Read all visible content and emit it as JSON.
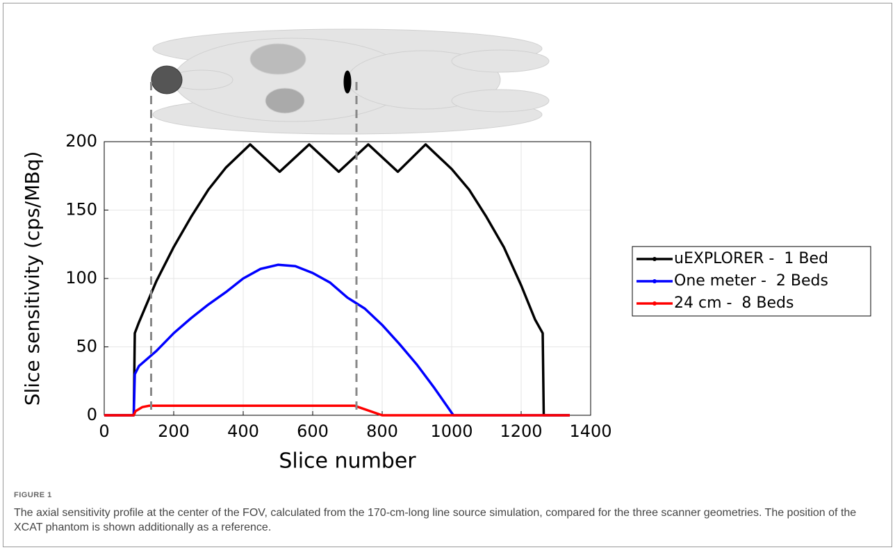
{
  "chart_data": {
    "type": "line",
    "xlabel": "Slice number",
    "ylabel": "Slice sensitivity (cps/MBq)",
    "xlim": [
      0,
      1400
    ],
    "xticks": [
      0,
      200,
      400,
      600,
      800,
      1000,
      1200,
      1400
    ],
    "ylim": [
      0,
      200
    ],
    "yticks": [
      0,
      50,
      100,
      150,
      200
    ],
    "grid": true,
    "legend": "right",
    "vlines": [
      135,
      726
    ],
    "series": [
      {
        "name": "uEXPLORER -  1 Bed",
        "color": "#000000",
        "x": [
          0,
          85,
          88,
          100,
          150,
          200,
          250,
          300,
          350,
          420,
          505,
          590,
          675,
          760,
          845,
          925,
          1000,
          1050,
          1100,
          1150,
          1200,
          1240,
          1262,
          1265,
          1340
        ],
        "values": [
          0,
          0,
          60,
          68,
          98,
          123,
          145,
          165,
          181,
          198,
          178,
          198,
          178,
          198,
          178,
          198,
          180,
          165,
          145,
          123,
          95,
          70,
          60,
          0,
          0
        ]
      },
      {
        "name": "One meter -  2 Beds",
        "color": "#0000ff",
        "x": [
          0,
          85,
          88,
          100,
          150,
          200,
          250,
          300,
          350,
          400,
          450,
          500,
          550,
          600,
          650,
          700,
          750,
          800,
          850,
          900,
          950,
          1005,
          1340
        ],
        "values": [
          0,
          0,
          30,
          36,
          47,
          60,
          71,
          81,
          90,
          100,
          107,
          110,
          109,
          104,
          97,
          86,
          78,
          66,
          52,
          37,
          20,
          0,
          0
        ]
      },
      {
        "name": "24 cm -  8 Beds",
        "color": "#ff0000",
        "x": [
          0,
          85,
          90,
          110,
          130,
          700,
          720,
          800,
          1340
        ],
        "values": [
          0,
          0,
          3,
          6,
          7,
          7,
          7,
          0,
          0
        ]
      }
    ]
  },
  "caption": {
    "label": "FIGURE 1",
    "text": "The axial sensitivity profile at the center of the FOV, calculated from the 170-cm-long line source simulation, compared for the three scanner geometries. The position of the XCAT phantom is shown additionally as a reference."
  }
}
